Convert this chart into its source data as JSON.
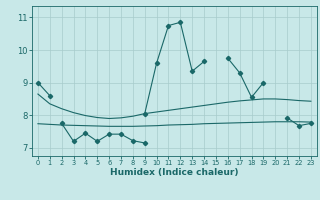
{
  "xlabel": "Humidex (Indice chaleur)",
  "bg_color": "#c8e8e8",
  "grid_color": "#a8cccc",
  "line_color": "#1a6868",
  "x": [
    0,
    1,
    2,
    3,
    4,
    5,
    6,
    7,
    8,
    9,
    10,
    11,
    12,
    13,
    14,
    15,
    16,
    17,
    18,
    19,
    20,
    21,
    22,
    23
  ],
  "line_spike": [
    9.0,
    8.6,
    null,
    null,
    null,
    null,
    null,
    null,
    null,
    8.05,
    9.6,
    10.75,
    10.85,
    9.35,
    9.65,
    null,
    9.75,
    9.3,
    8.55,
    9.0,
    null,
    7.92,
    7.68,
    7.75
  ],
  "line_upper_smooth": [
    8.65,
    8.35,
    8.2,
    8.08,
    7.99,
    7.93,
    7.9,
    7.92,
    7.97,
    8.05,
    8.1,
    8.15,
    8.2,
    8.25,
    8.3,
    8.35,
    8.4,
    8.44,
    8.47,
    8.5,
    8.5,
    8.48,
    8.45,
    8.43
  ],
  "line_lower_smooth": [
    7.74,
    7.72,
    7.7,
    7.69,
    7.68,
    7.67,
    7.66,
    7.66,
    7.66,
    7.67,
    7.68,
    7.7,
    7.71,
    7.72,
    7.74,
    7.75,
    7.76,
    7.77,
    7.78,
    7.79,
    7.8,
    7.8,
    7.8,
    7.79
  ],
  "line_zigzag": [
    null,
    null,
    7.75,
    7.2,
    7.45,
    7.2,
    7.42,
    7.42,
    7.22,
    7.15,
    null,
    null,
    null,
    null,
    null,
    null,
    null,
    null,
    null,
    null,
    null,
    null,
    null,
    null
  ],
  "ylim_min": 6.75,
  "ylim_max": 11.35,
  "yticks": [
    7,
    8,
    9,
    10,
    11
  ]
}
